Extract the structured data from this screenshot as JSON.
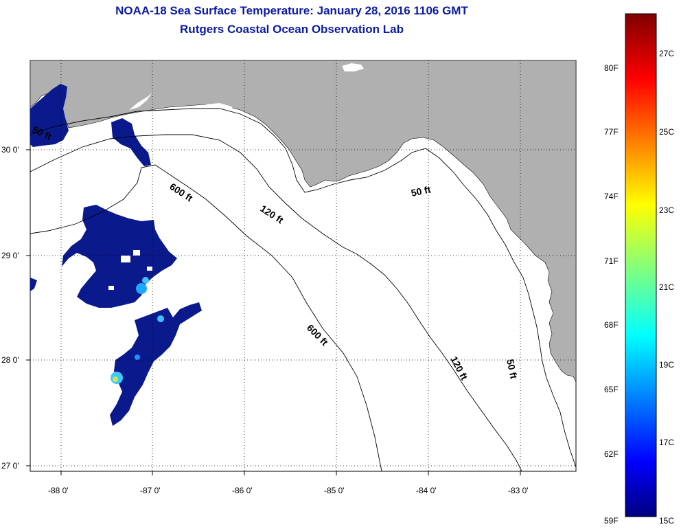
{
  "title": "NOAA-18 Sea Surface Temperature:  January 28, 2016 1106 GMT",
  "subtitle": "Rutgers Coastal Ocean Observation Lab",
  "lat_labels": [
    "30 0'",
    "29 0'",
    "28 0'",
    "27 0'"
  ],
  "lon_labels": [
    "-88 0'",
    "-87 0'",
    "-86 0'",
    "-85 0'",
    "-84 0'",
    "-83 0'"
  ],
  "contour_labels": {
    "c600a": "600 ft",
    "c120a": "120 ft",
    "c50a": "50 ft",
    "c600b": "600 ft",
    "c120b": "120 ft",
    "c50b": "50 ft",
    "c50c": "50 ft"
  },
  "colorbar": {
    "f_labels": [
      "80F",
      "77F",
      "74F",
      "71F",
      "68F",
      "65F",
      "62F",
      "59F"
    ],
    "c_labels": [
      "27C",
      "25C",
      "23C",
      "21C",
      "19C",
      "17C",
      "15C"
    ]
  },
  "colors": {
    "title": "#0b1aa3",
    "land": "#b0b0b0",
    "cold_sst": "#0a1a8c"
  }
}
